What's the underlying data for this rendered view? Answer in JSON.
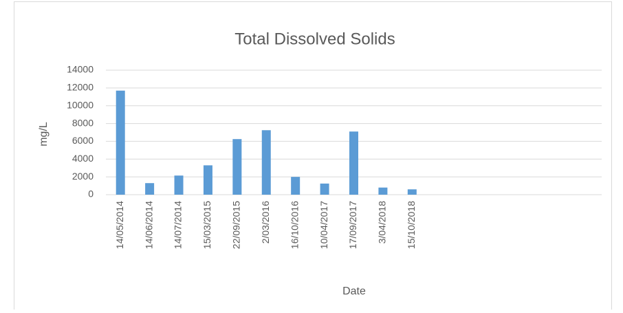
{
  "chart_data": {
    "type": "bar",
    "title": "Total Dissolved Solids",
    "x_label": "Date",
    "y_label": "mg/L",
    "categories": [
      "14/05/2014",
      "14/06/2014",
      "14/07/2014",
      "15/03/2015",
      "22/09/2015",
      "2/03/2016",
      "16/10/2016",
      "10/04/2017",
      "17/09/2017",
      "3/04/2018",
      "15/10/2018",
      null,
      null,
      null,
      null,
      null,
      null
    ],
    "values": [
      11700,
      1300,
      2150,
      3300,
      6250,
      7250,
      2000,
      1250,
      7100,
      800,
      600,
      null,
      null,
      null,
      null,
      null,
      null
    ],
    "color": "#5b9bd5",
    "ylim": [
      0,
      14000
    ],
    "yticks": [
      0,
      2000,
      4000,
      6000,
      8000,
      10000,
      12000,
      14000
    ],
    "grid": true
  }
}
